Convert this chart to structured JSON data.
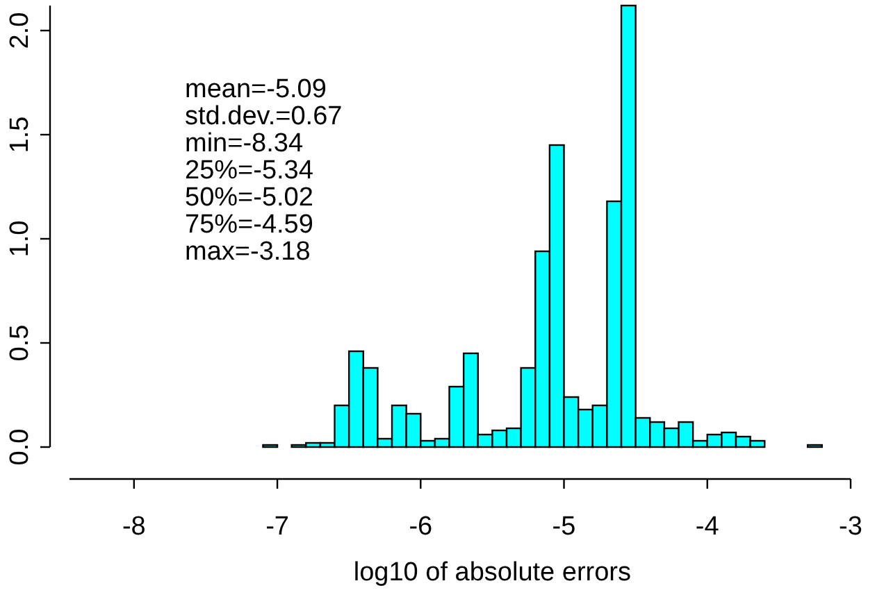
{
  "chart_data": {
    "type": "histogram",
    "xlabel": "log10 of absolute errors",
    "annotations": [
      "mean=-5.09",
      "std.dev.=0.67",
      "min=-8.34",
      "25%=-5.34",
      "50%=-5.02",
      "75%=-4.59",
      "max=-3.18"
    ],
    "bins": [
      -8.3,
      -8.2,
      -8.1,
      -8.0,
      -7.9,
      -7.8,
      -7.7,
      -7.6,
      -7.5,
      -7.4,
      -7.3,
      -7.2,
      -7.1,
      -7.0,
      -6.9,
      -6.8,
      -6.7,
      -6.6,
      -6.5,
      -6.4,
      -6.3,
      -6.2,
      -6.1,
      -6.0,
      -5.9,
      -5.8,
      -5.7,
      -5.6,
      -5.5,
      -5.4,
      -5.3,
      -5.2,
      -5.1,
      -5.0,
      -4.9,
      -4.8,
      -4.7,
      -4.6,
      -4.5,
      -4.4,
      -4.3,
      -4.2,
      -4.1,
      -4.0,
      -3.9,
      -3.8,
      -3.7,
      -3.6,
      -3.5,
      -3.4,
      -3.3,
      -3.2,
      -3.1
    ],
    "values": [
      0,
      0,
      0,
      0,
      0,
      0,
      0,
      0,
      0,
      0,
      0,
      0,
      0.01,
      0,
      0.01,
      0.02,
      0.02,
      0.2,
      0.46,
      0.38,
      0.04,
      0.2,
      0.16,
      0.03,
      0.04,
      0.29,
      0.45,
      0.06,
      0.08,
      0.09,
      0.38,
      0.94,
      1.45,
      0.24,
      0.18,
      0.2,
      1.18,
      2.12,
      0.14,
      0.12,
      0.09,
      0.12,
      0.03,
      0.06,
      0.07,
      0.05,
      0.03,
      0,
      0,
      0,
      0.01,
      0
    ],
    "color": "#00ffff",
    "xlim": [
      -8.45,
      -3.0
    ],
    "ylim": [
      0,
      2.12
    ],
    "xticks": [
      -8,
      -7,
      -6,
      -5,
      -4,
      -3
    ],
    "yticks": [
      {
        "value": 0,
        "label": "0.0"
      },
      {
        "value": 0.5,
        "label": "0.5"
      },
      {
        "value": 1,
        "label": "1.0"
      },
      {
        "value": 1.5,
        "label": "1.5"
      },
      {
        "value": 2,
        "label": "2.0"
      }
    ]
  }
}
